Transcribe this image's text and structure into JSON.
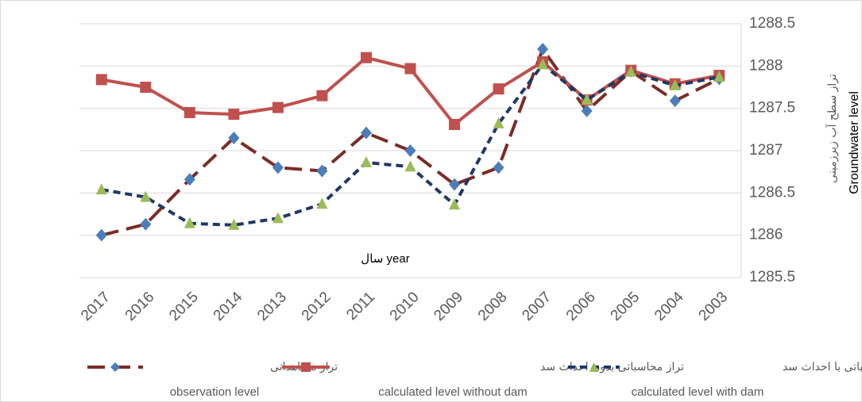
{
  "chart_data": {
    "type": "line",
    "x_label": "سال year",
    "y_label": "Groundwater level",
    "y_label_fa": "تراز سطح آب زیرزمینی",
    "categories": [
      "2017",
      "2016",
      "2015",
      "2014",
      "2013",
      "2012",
      "2011",
      "2010",
      "2009",
      "2008",
      "2007",
      "2006",
      "2005",
      "2004",
      "2003"
    ],
    "series": [
      {
        "name": "تراز مشاهداتی",
        "name_en": "observation level",
        "color": "#7b2c26",
        "marker": "diamond",
        "marker_color": "#4a7ebb",
        "dash": "long",
        "values": [
          1286.0,
          1286.13,
          1286.66,
          1287.15,
          1286.8,
          1286.76,
          1287.21,
          1287.0,
          1286.6,
          1286.8,
          1288.2,
          1287.47,
          1287.94,
          1287.59,
          1287.85
        ]
      },
      {
        "name": "تراز محاسباتی بدون احداث سد",
        "name_en": "calculated level without dam",
        "color": "#c0504d",
        "marker": "square",
        "marker_color": "#c0504d",
        "dash": "solid",
        "values": [
          1287.84,
          1287.75,
          1287.45,
          1287.43,
          1287.51,
          1287.65,
          1288.1,
          1287.97,
          1287.31,
          1287.73,
          1288.05,
          1287.6,
          1287.95,
          1287.79,
          1287.89
        ]
      },
      {
        "name": "تراز محاسباتی با احداث سد",
        "name_en": "calculated level with dam",
        "color": "#1f3864",
        "marker": "triangle",
        "marker_color": "#9bbb59",
        "dash": "short",
        "values": [
          1286.54,
          1286.45,
          1286.14,
          1286.12,
          1286.2,
          1286.37,
          1286.86,
          1286.81,
          1286.36,
          1287.32,
          1288.02,
          1287.6,
          1287.93,
          1287.77,
          1287.87
        ]
      }
    ],
    "ylim": [
      1285.5,
      1288.5
    ],
    "yticks": [
      1285.5,
      1286,
      1286.5,
      1287,
      1287.5,
      1288,
      1288.5
    ],
    "y_axis_side": "right",
    "grid": true
  }
}
